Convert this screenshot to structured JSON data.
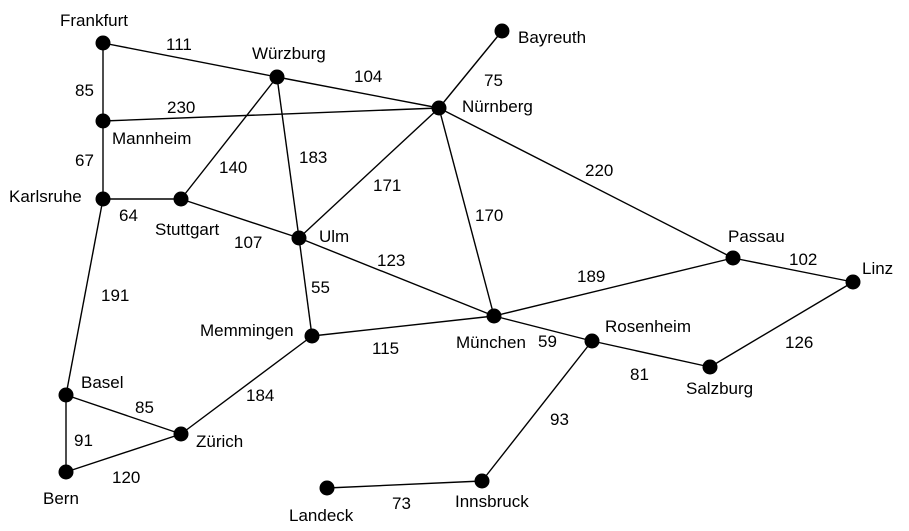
{
  "graph": {
    "cities": [
      {
        "id": "frankfurt",
        "name": "Frankfurt"
      },
      {
        "id": "wuerzburg",
        "name": "Würzburg"
      },
      {
        "id": "bayreuth",
        "name": "Bayreuth"
      },
      {
        "id": "mannheim",
        "name": "Mannheim"
      },
      {
        "id": "nuernberg",
        "name": "Nürnberg"
      },
      {
        "id": "karlsruhe",
        "name": "Karlsruhe"
      },
      {
        "id": "stuttgart",
        "name": "Stuttgart"
      },
      {
        "id": "ulm",
        "name": "Ulm"
      },
      {
        "id": "passau",
        "name": "Passau"
      },
      {
        "id": "linz",
        "name": "Linz"
      },
      {
        "id": "memmingen",
        "name": "Memmingen"
      },
      {
        "id": "muenchen",
        "name": "München"
      },
      {
        "id": "rosenheim",
        "name": "Rosenheim"
      },
      {
        "id": "salzburg",
        "name": "Salzburg"
      },
      {
        "id": "basel",
        "name": "Basel"
      },
      {
        "id": "zuerich",
        "name": "Zürich"
      },
      {
        "id": "bern",
        "name": "Bern"
      },
      {
        "id": "landeck",
        "name": "Landeck"
      },
      {
        "id": "innsbruck",
        "name": "Innsbruck"
      }
    ],
    "roads": [
      {
        "from": "frankfurt",
        "to": "wuerzburg",
        "distance": "111"
      },
      {
        "from": "frankfurt",
        "to": "mannheim",
        "distance": "85"
      },
      {
        "from": "wuerzburg",
        "to": "nuernberg",
        "distance": "104"
      },
      {
        "from": "mannheim",
        "to": "nuernberg",
        "distance": "230"
      },
      {
        "from": "bayreuth",
        "to": "nuernberg",
        "distance": "75"
      },
      {
        "from": "mannheim",
        "to": "karlsruhe",
        "distance": "67"
      },
      {
        "from": "wuerzburg",
        "to": "stuttgart",
        "distance": "140"
      },
      {
        "from": "wuerzburg",
        "to": "ulm",
        "distance": "183"
      },
      {
        "from": "nuernberg",
        "to": "ulm",
        "distance": "171"
      },
      {
        "from": "nuernberg",
        "to": "muenchen",
        "distance": "170"
      },
      {
        "from": "nuernberg",
        "to": "passau",
        "distance": "220"
      },
      {
        "from": "karlsruhe",
        "to": "stuttgart",
        "distance": "64"
      },
      {
        "from": "stuttgart",
        "to": "ulm",
        "distance": "107"
      },
      {
        "from": "karlsruhe",
        "to": "basel",
        "distance": "191"
      },
      {
        "from": "ulm",
        "to": "muenchen",
        "distance": "123"
      },
      {
        "from": "ulm",
        "to": "memmingen",
        "distance": "55"
      },
      {
        "from": "passau",
        "to": "linz",
        "distance": "102"
      },
      {
        "from": "muenchen",
        "to": "passau",
        "distance": "189"
      },
      {
        "from": "memmingen",
        "to": "muenchen",
        "distance": "115"
      },
      {
        "from": "muenchen",
        "to": "rosenheim",
        "distance": "59"
      },
      {
        "from": "salzburg",
        "to": "linz",
        "distance": "126"
      },
      {
        "from": "rosenheim",
        "to": "salzburg",
        "distance": "81"
      },
      {
        "from": "memmingen",
        "to": "zuerich",
        "distance": "184"
      },
      {
        "from": "basel",
        "to": "zuerich",
        "distance": "85"
      },
      {
        "from": "basel",
        "to": "bern",
        "distance": "91"
      },
      {
        "from": "bern",
        "to": "zuerich",
        "distance": "120"
      },
      {
        "from": "rosenheim",
        "to": "innsbruck",
        "distance": "93"
      },
      {
        "from": "landeck",
        "to": "innsbruck",
        "distance": "73"
      }
    ]
  }
}
